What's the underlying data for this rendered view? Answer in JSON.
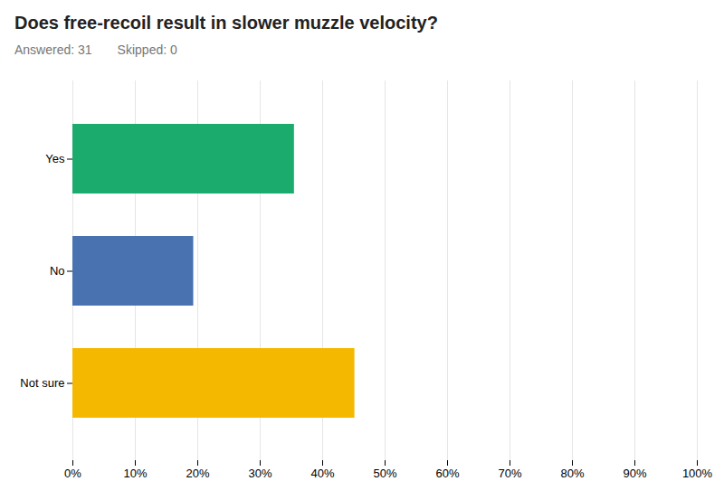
{
  "chart_data": {
    "type": "bar",
    "orientation": "horizontal",
    "title": "Does free-recoil result in slower muzzle velocity?",
    "subtitle": [
      "Answered: 31",
      "Skipped: 0"
    ],
    "categories": [
      "Yes",
      "No",
      "Not sure"
    ],
    "values": [
      35.48,
      19.35,
      45.16
    ],
    "colors": [
      "#1aab6d",
      "#4872b0",
      "#f5b800"
    ],
    "xlim": [
      0,
      100
    ],
    "xticks": [
      {
        "value": 0,
        "label": "0%"
      },
      {
        "value": 10,
        "label": "10%"
      },
      {
        "value": 20,
        "label": "20%"
      },
      {
        "value": 30,
        "label": "30%"
      },
      {
        "value": 40,
        "label": "40%"
      },
      {
        "value": 50,
        "label": "50%"
      },
      {
        "value": 60,
        "label": "60%"
      },
      {
        "value": 70,
        "label": "70%"
      },
      {
        "value": 80,
        "label": "80%"
      },
      {
        "value": 90,
        "label": "90%"
      },
      {
        "value": 100,
        "label": "100%"
      }
    ],
    "grid": true
  }
}
